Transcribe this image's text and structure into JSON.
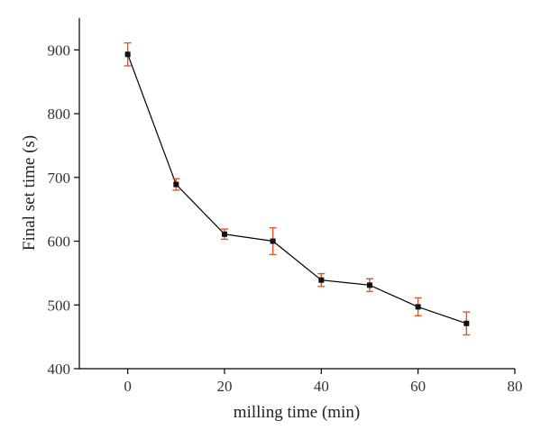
{
  "chart_data": {
    "type": "scatter",
    "xlabel": "milling time (min)",
    "ylabel": "Final set time (s)",
    "xlim": [
      -10,
      80
    ],
    "ylim": [
      400,
      950
    ],
    "xticks": [
      0,
      20,
      40,
      60,
      80
    ],
    "yticks": [
      400,
      500,
      600,
      700,
      800,
      900
    ],
    "grid": false,
    "series": [
      {
        "x": [
          0,
          10,
          20,
          30,
          40,
          50,
          60,
          70
        ],
        "y": [
          893,
          689,
          611,
          600,
          539,
          531,
          497,
          471
        ],
        "error": [
          18,
          9,
          8,
          21,
          10,
          10,
          14,
          18
        ],
        "marker": "square",
        "line": true
      }
    ],
    "colors": {
      "line": "#000000",
      "marker": "#111111",
      "errorbar": "#e0552a"
    }
  }
}
